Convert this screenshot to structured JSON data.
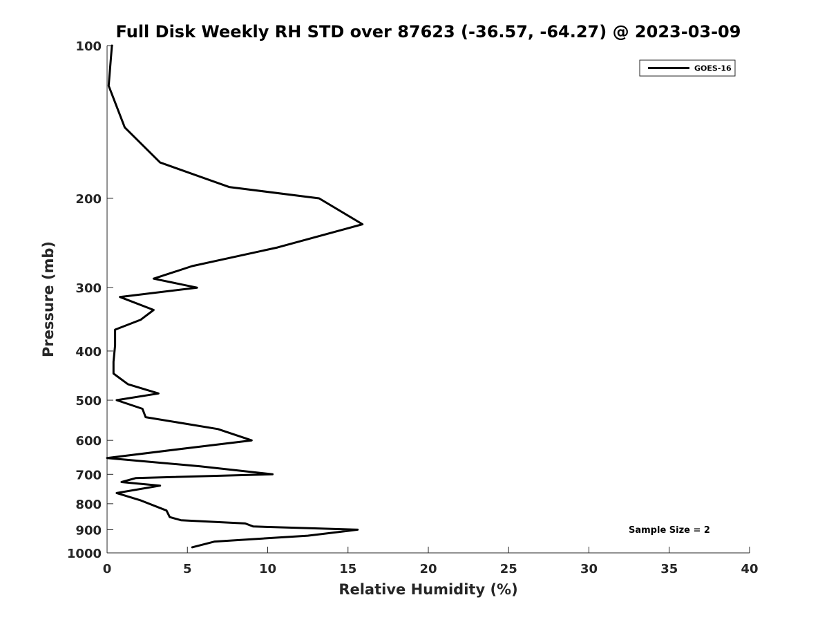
{
  "chart_data": {
    "type": "line",
    "title": "Full Disk Weekly RH STD over 87623 (-36.57, -64.27) @ 2023-03-09",
    "xlabel": "Relative Humidity (%)",
    "ylabel": "Pressure (mb)",
    "xlim": [
      0,
      40
    ],
    "ylim": [
      100,
      1000
    ],
    "y_scale": "log",
    "y_reversed": true,
    "x_ticks": [
      "0",
      "5",
      "10",
      "15",
      "20",
      "25",
      "30",
      "35",
      "40"
    ],
    "y_ticks": [
      "100",
      "200",
      "300",
      "400",
      "500",
      "600",
      "700",
      "800",
      "900",
      "1000"
    ],
    "grid": false,
    "legend_position": "top-right",
    "series": [
      {
        "name": "GOES-16",
        "color": "#000000",
        "x": [
          0.3,
          0.1,
          1.1,
          3.3,
          7.6,
          13.2,
          15.9,
          10.6,
          5.3,
          2.9,
          5.6,
          0.8,
          2.9,
          2.1,
          0.5,
          0.5,
          0.4,
          0.4,
          1.3,
          3.2,
          0.6,
          2.2,
          2.4,
          6.9,
          9.0,
          5.3,
          0.0,
          5.8,
          10.3,
          1.8,
          0.9,
          3.3,
          0.6,
          2.1,
          3.7,
          3.9,
          4.6,
          8.6,
          9.1,
          15.6,
          12.5,
          6.7,
          5.3
        ],
        "y": [
          100,
          120,
          145,
          170,
          190,
          200,
          225,
          250,
          272,
          288,
          300,
          313,
          332,
          347,
          363,
          390,
          420,
          443,
          465,
          485,
          500,
          520,
          540,
          570,
          600,
          620,
          650,
          675,
          700,
          712,
          725,
          737,
          762,
          788,
          825,
          850,
          862,
          875,
          887,
          900,
          925,
          950,
          975
        ]
      }
    ],
    "annotations": [
      "Sample Size = 2"
    ]
  }
}
